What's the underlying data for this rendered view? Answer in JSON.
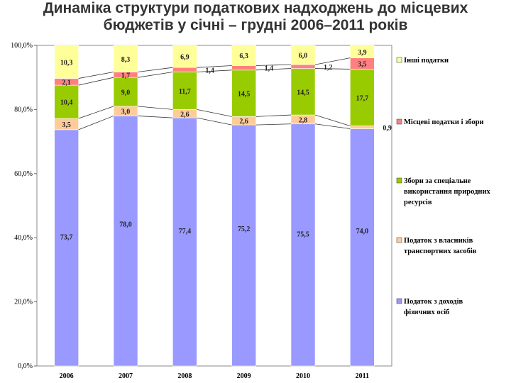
{
  "title_line1": "Динаміка структури податкових надходжень до місцевих",
  "title_line2": "бюджетів у січні – грудні 2006–2011 років",
  "chart_data": {
    "type": "bar",
    "stacked": true,
    "percent": true,
    "categories": [
      "2006",
      "2007",
      "2008",
      "2009",
      "2010",
      "2011"
    ],
    "ylim": [
      0,
      100
    ],
    "yticks": [
      "0,0%",
      "20,0%",
      "40,0%",
      "60,0%",
      "80,0%",
      "100,0%"
    ],
    "grid": false,
    "legend_position": "right",
    "series": [
      {
        "name": "Податок з доходів фізичних осіб",
        "color": "#9999ff",
        "values": [
          73.7,
          78.0,
          77.4,
          75.2,
          75.5,
          74.0
        ],
        "labels": [
          "73,7",
          "78,0",
          "77,4",
          "75,2",
          "75,5",
          "74,0"
        ]
      },
      {
        "name": "Податок з власників транспортних засобів",
        "color": "#ffcc99",
        "values": [
          3.5,
          3.0,
          2.6,
          2.6,
          2.8,
          0.9
        ],
        "labels": [
          "3,5",
          "3,0",
          "2,6",
          "2,6",
          "2,8",
          "0,9"
        ]
      },
      {
        "name": "Збори за спеціальне використання природних ресурсів",
        "color": "#99cc00",
        "values": [
          10.4,
          9.0,
          11.7,
          14.5,
          14.5,
          17.7
        ],
        "labels": [
          "10,4",
          "9,0",
          "11,7",
          "14,5",
          "14,5",
          "17,7"
        ]
      },
      {
        "name": "Місцеві податки і збори",
        "color": "#ff8080",
        "values": [
          2.1,
          1.7,
          1.4,
          1.4,
          1.2,
          3.5
        ],
        "labels": [
          "2,1",
          "1,7",
          "1,4",
          "1,4",
          "1,2",
          "3,5"
        ]
      },
      {
        "name": "Інші податки",
        "color": "#ffff99",
        "values": [
          10.3,
          8.3,
          6.9,
          6.3,
          6.0,
          3.9
        ],
        "labels": [
          "10,3",
          "8,3",
          "6,9",
          "6,3",
          "6,0",
          "3,9"
        ]
      }
    ]
  }
}
